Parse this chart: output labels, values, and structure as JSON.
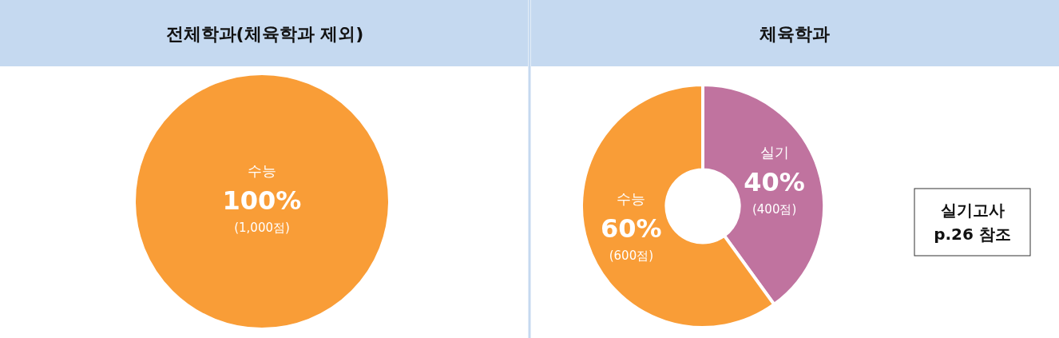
{
  "chart_data": [
    {
      "type": "pie",
      "title": "전체학과(체육학과 제외)",
      "categories": [
        "수능"
      ],
      "values": [
        100
      ],
      "colors": [
        "#f99d37"
      ],
      "value_labels": [
        "100%"
      ],
      "annotations": [
        {
          "text": "(1,000점)",
          "x": "수능"
        }
      ]
    },
    {
      "type": "donut",
      "title": "체육학과",
      "categories": [
        "실기",
        "수능"
      ],
      "values": [
        40,
        60
      ],
      "colors": [
        "#c0739f",
        "#f99d37"
      ],
      "value_labels": [
        "40%",
        "60%"
      ],
      "annotations": [
        {
          "text": "(400점)",
          "x": "실기"
        },
        {
          "text": "(600점)",
          "x": "수능"
        },
        "실기고사\np.26 참조"
      ]
    }
  ]
}
